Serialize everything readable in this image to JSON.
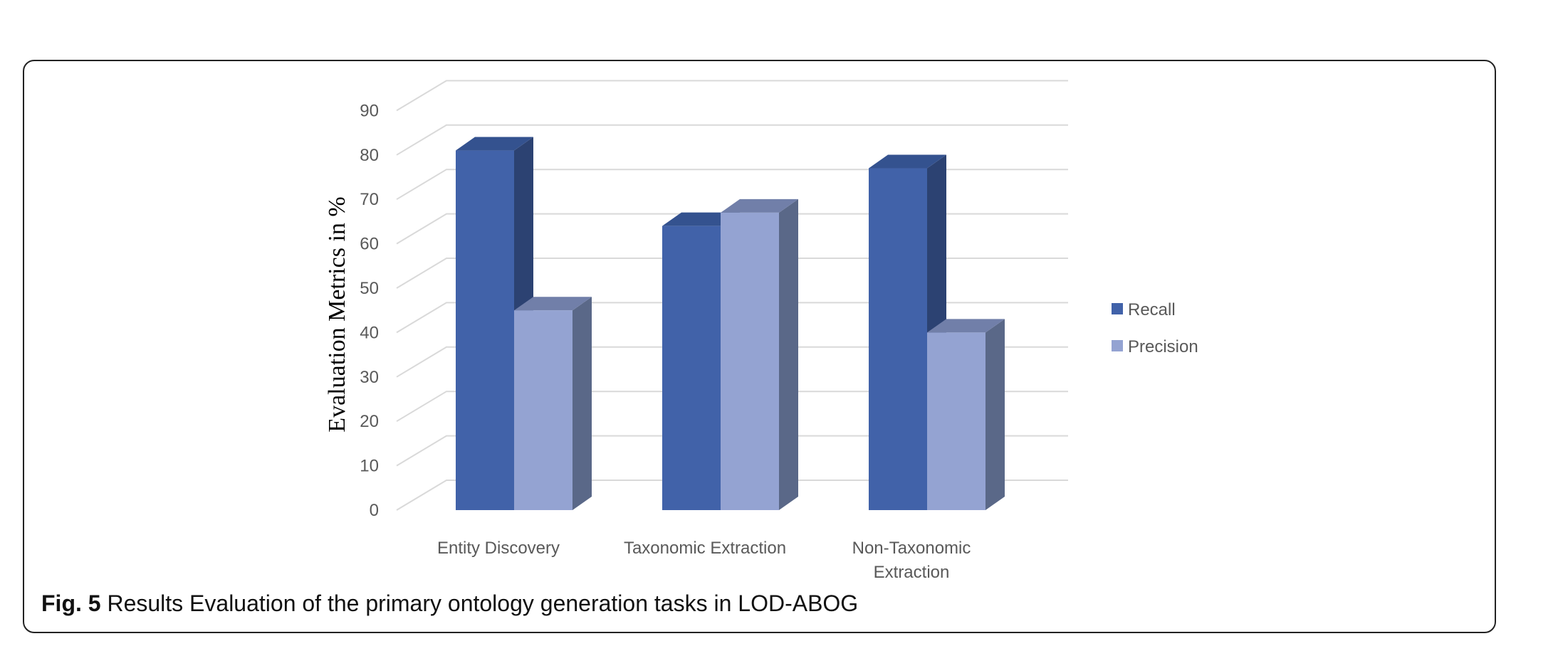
{
  "chart_data": {
    "type": "bar",
    "style": "3d-clustered-column",
    "ylabel": "Evaluation Metrics in %",
    "xlabel": "",
    "ylim": [
      0,
      90
    ],
    "yticks": [
      "0",
      "10",
      "20",
      "30",
      "40",
      "50",
      "60",
      "70",
      "80",
      "90"
    ],
    "categories": [
      [
        "Entity Discovery"
      ],
      [
        "Taxonomic Extraction"
      ],
      [
        "Non-Taxonomic",
        "Extraction"
      ]
    ],
    "series": [
      {
        "name": "Recall",
        "values": [
          81,
          64,
          77
        ]
      },
      {
        "name": "Precision",
        "values": [
          45,
          67,
          40
        ]
      }
    ],
    "legend_position": "right",
    "grid": true
  },
  "colors": {
    "recall_front": "#4162a9",
    "recall_side": "#2c4272",
    "recall_top": "#34528f",
    "precision_front": "#94a3d2",
    "precision_side": "#5a6888",
    "precision_top": "#717fa9",
    "grid": "#d9d9d9"
  },
  "caption": {
    "label": "Fig. 5",
    "text": " Results Evaluation of the primary ontology generation tasks in LOD-ABOG"
  }
}
